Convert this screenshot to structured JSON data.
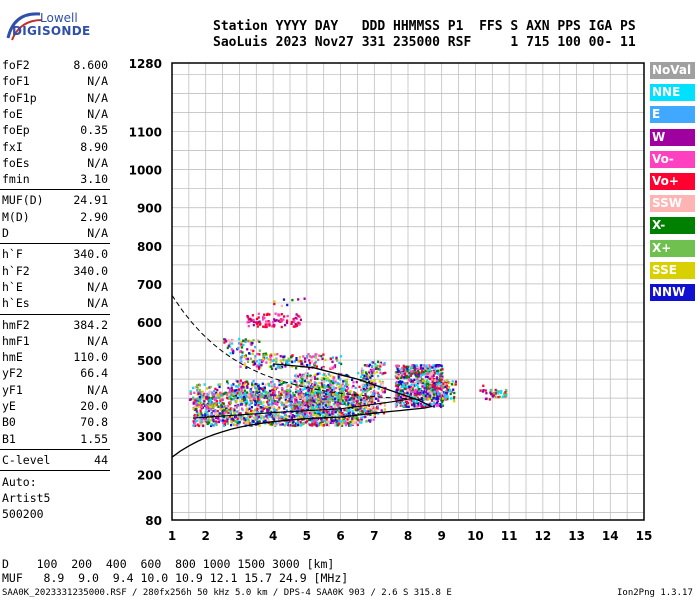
{
  "logo": {
    "line1": "Lowell",
    "line2": "DIGISONDE"
  },
  "header": {
    "line1": "Station YYYY DAY   DDD HHMMSS P1  FFS S AXN PPS IGA PS",
    "line2": "SaoLuis 2023 Nov27 331 235000 RSF     1 715 100 00- 11"
  },
  "params_group1": [
    {
      "key": "foF2",
      "value": "8.600"
    },
    {
      "key": "foF1",
      "value": "N/A"
    },
    {
      "key": "foF1p",
      "value": "N/A"
    },
    {
      "key": "foE",
      "value": "N/A"
    },
    {
      "key": "foEp",
      "value": "0.35"
    },
    {
      "key": "fxI",
      "value": "8.90"
    },
    {
      "key": "foEs",
      "value": "N/A"
    },
    {
      "key": "fmin",
      "value": "3.10"
    }
  ],
  "params_group2": [
    {
      "key": "MUF(D)",
      "value": "24.91"
    },
    {
      "key": "M(D)",
      "value": "2.90"
    },
    {
      "key": "D",
      "value": "N/A"
    }
  ],
  "params_group3": [
    {
      "key": "h`F",
      "value": "340.0"
    },
    {
      "key": "h`F2",
      "value": "340.0"
    },
    {
      "key": "h`E",
      "value": "N/A"
    },
    {
      "key": "h`Es",
      "value": "N/A"
    }
  ],
  "params_group4": [
    {
      "key": "hmF2",
      "value": "384.2"
    },
    {
      "key": "hmF1",
      "value": "N/A"
    },
    {
      "key": "hmE",
      "value": "110.0"
    },
    {
      "key": "yF2",
      "value": "66.4"
    },
    {
      "key": "yF1",
      "value": "N/A"
    },
    {
      "key": "yE",
      "value": "20.0"
    },
    {
      "key": "B0",
      "value": "70.8"
    },
    {
      "key": "B1",
      "value": "1.55"
    }
  ],
  "params_group5": [
    {
      "key": "C-level",
      "value": "44"
    }
  ],
  "notes": [
    "Auto:",
    "Artist5",
    "500200"
  ],
  "legend": [
    {
      "label": "NoVal",
      "color": "#a0a0a0"
    },
    {
      "label": "NNE",
      "color": "#00e0ff"
    },
    {
      "label": "E",
      "color": "#40a8ff"
    },
    {
      "label": "W",
      "color": "#a000a0"
    },
    {
      "label": "Vo-",
      "color": "#ff40c0"
    },
    {
      "label": "Vo+",
      "color": "#ff0030"
    },
    {
      "label": "SSW",
      "color": "#ffb4b4"
    },
    {
      "label": "X-",
      "color": "#008000"
    },
    {
      "label": "X+",
      "color": "#70c050"
    },
    {
      "label": "SSE",
      "color": "#d8d000"
    },
    {
      "label": "NNW",
      "color": "#1010d0"
    }
  ],
  "chart": {
    "x_ticks": [
      "1",
      "2",
      "3",
      "4",
      "5",
      "6",
      "7",
      "8",
      "9",
      "10",
      "11",
      "12",
      "13",
      "14",
      "15"
    ],
    "y_ticks": [
      "80",
      "200",
      "300",
      "400",
      "500",
      "600",
      "700",
      "800",
      "900",
      "1000",
      "1100",
      "1280"
    ]
  },
  "muf_table": {
    "d_row": "D    100  200  400  600  800 1000 1500 3000 [km]",
    "muf_row": "MUF   8.9  9.0  9.4 10.0 10.9 12.1 15.7 24.9 [MHz]"
  },
  "footer": {
    "left": "SAA0K_2023331235000.RSF / 280fx256h 50 kHz 5.0 km / DPS-4 SAA0K 903 / 2.6 S 315.8 E",
    "right": "Ion2Png 1.3.17"
  }
}
